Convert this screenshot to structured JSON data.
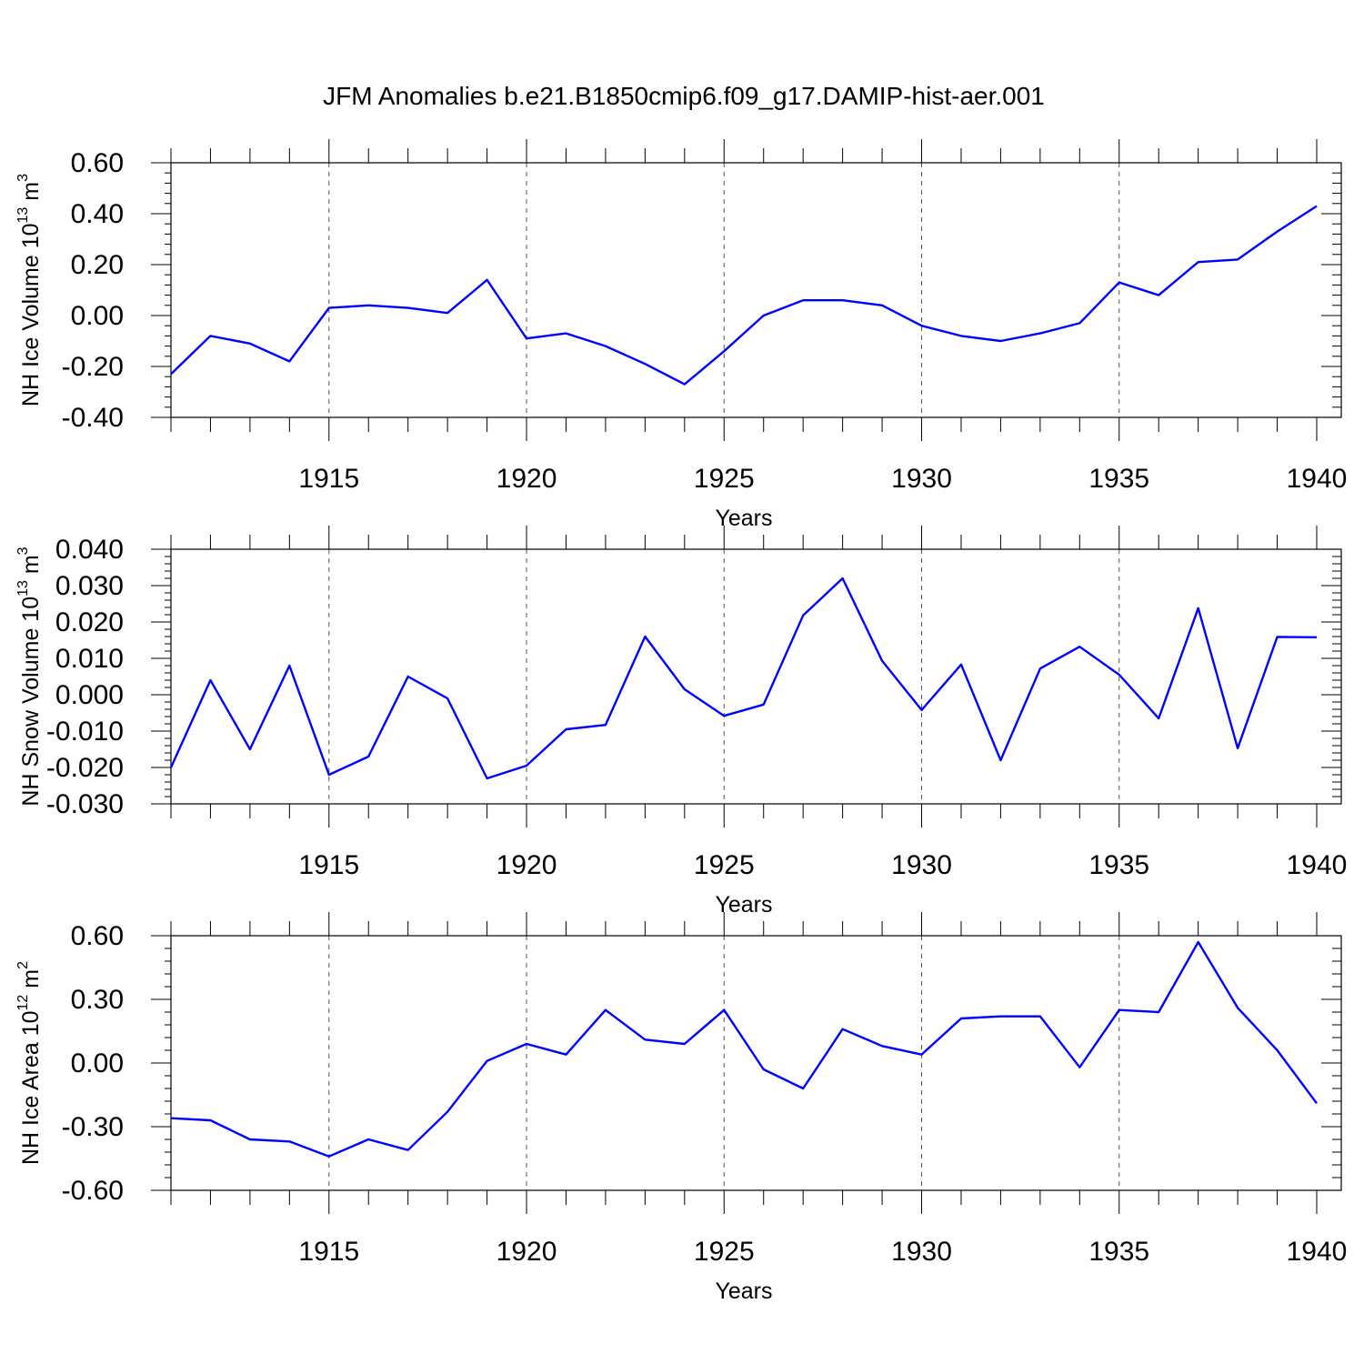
{
  "title": "JFM Anomalies b.e21.B1850cmip6.f09_g17.DAMIP-hist-aer.001",
  "colors": {
    "line": "#0000ff",
    "axis": "#000000",
    "grid": "#555555"
  },
  "chart_data": [
    {
      "type": "line",
      "ylabel": "NH Ice Volume 10",
      "ylabel_exp": "13",
      "ylabel_unit": " m",
      "ylabel_unit_exp": "3",
      "xlabel": "Years",
      "xlim": [
        1911,
        1940
      ],
      "ylim": [
        -0.4,
        0.6
      ],
      "yticks": [
        -0.4,
        -0.2,
        0.0,
        0.2,
        0.4,
        0.6
      ],
      "ytick_labels": [
        "-0.40",
        "-0.20",
        "0.00",
        "0.20",
        "0.40",
        "0.60"
      ],
      "yminor": 0.04,
      "xticks": [
        1915,
        1920,
        1925,
        1930,
        1935,
        1940
      ],
      "xtick_labels": [
        "1915",
        "1920",
        "1925",
        "1930",
        "1935",
        "1940"
      ],
      "vgrid": [
        1915,
        1920,
        1925,
        1930,
        1935
      ],
      "x": [
        1911,
        1912,
        1913,
        1914,
        1915,
        1916,
        1917,
        1918,
        1919,
        1920,
        1921,
        1922,
        1923,
        1924,
        1925,
        1926,
        1927,
        1928,
        1929,
        1930,
        1931,
        1932,
        1933,
        1934,
        1935,
        1936,
        1937,
        1938,
        1939,
        1940
      ],
      "values": [
        -0.23,
        -0.08,
        -0.11,
        -0.18,
        0.03,
        0.04,
        0.03,
        0.01,
        0.14,
        -0.09,
        -0.07,
        -0.12,
        -0.19,
        -0.27,
        -0.14,
        0.0,
        0.06,
        0.06,
        0.04,
        -0.04,
        -0.08,
        -0.1,
        -0.07,
        -0.03,
        0.13,
        0.08,
        0.21,
        0.22,
        0.33,
        0.43
      ]
    },
    {
      "type": "line",
      "ylabel": "NH Snow Volume 10",
      "ylabel_exp": "13",
      "ylabel_unit": " m",
      "ylabel_unit_exp": "3",
      "xlabel": "Years",
      "xlim": [
        1911,
        1940
      ],
      "ylim": [
        -0.03,
        0.04
      ],
      "yticks": [
        -0.03,
        -0.02,
        -0.01,
        0.0,
        0.01,
        0.02,
        0.03,
        0.04
      ],
      "ytick_labels": [
        "-0.030",
        "-0.020",
        "-0.010",
        "0.000",
        "0.010",
        "0.020",
        "0.030",
        "0.040"
      ],
      "yminor": 0.002,
      "xticks": [
        1915,
        1920,
        1925,
        1930,
        1935,
        1940
      ],
      "xtick_labels": [
        "1915",
        "1920",
        "1925",
        "1930",
        "1935",
        "1940"
      ],
      "vgrid": [
        1915,
        1920,
        1925,
        1930,
        1935
      ],
      "x": [
        1911,
        1912,
        1913,
        1914,
        1915,
        1916,
        1917,
        1918,
        1919,
        1920,
        1921,
        1922,
        1923,
        1924,
        1925,
        1926,
        1927,
        1928,
        1929,
        1930,
        1931,
        1932,
        1933,
        1934,
        1935,
        1936,
        1937,
        1938,
        1939,
        1940
      ],
      "values": [
        -0.02,
        0.004,
        -0.015,
        0.008,
        -0.022,
        -0.017,
        0.005,
        -0.001,
        -0.023,
        -0.0195,
        -0.0095,
        -0.0083,
        0.016,
        0.0015,
        -0.0058,
        -0.0027,
        0.0218,
        0.032,
        0.0093,
        -0.0042,
        0.0083,
        -0.018,
        0.0072,
        0.0132,
        0.0055,
        -0.0065,
        0.0238,
        -0.0147,
        0.0159,
        0.0158
      ]
    },
    {
      "type": "line",
      "ylabel": "NH Ice Area 10",
      "ylabel_exp": "12",
      "ylabel_unit": " m",
      "ylabel_unit_exp": "2",
      "xlabel": "Years",
      "xlim": [
        1911,
        1940
      ],
      "ylim": [
        -0.6,
        0.6
      ],
      "yticks": [
        -0.6,
        -0.3,
        0.0,
        0.3,
        0.6
      ],
      "ytick_labels": [
        "-0.60",
        "-0.30",
        "0.00",
        "0.30",
        "0.60"
      ],
      "yminor": 0.06,
      "xticks": [
        1915,
        1920,
        1925,
        1930,
        1935,
        1940
      ],
      "xtick_labels": [
        "1915",
        "1920",
        "1925",
        "1930",
        "1935",
        "1940"
      ],
      "vgrid": [
        1915,
        1920,
        1925,
        1930,
        1935
      ],
      "x": [
        1911,
        1912,
        1913,
        1914,
        1915,
        1916,
        1917,
        1918,
        1919,
        1920,
        1921,
        1922,
        1923,
        1924,
        1925,
        1926,
        1927,
        1928,
        1929,
        1930,
        1931,
        1932,
        1933,
        1934,
        1935,
        1936,
        1937,
        1938,
        1939,
        1940
      ],
      "values": [
        -0.26,
        -0.27,
        -0.36,
        -0.37,
        -0.44,
        -0.36,
        -0.41,
        -0.23,
        0.01,
        0.09,
        0.04,
        0.25,
        0.11,
        0.09,
        0.25,
        -0.03,
        -0.12,
        0.16,
        0.08,
        0.04,
        0.21,
        0.22,
        0.22,
        -0.02,
        0.25,
        0.24,
        0.57,
        0.26,
        0.06,
        -0.19
      ]
    }
  ]
}
